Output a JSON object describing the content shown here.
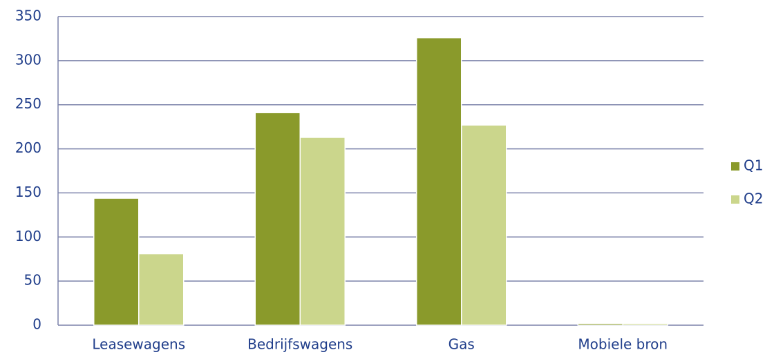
{
  "chart_data": {
    "type": "bar",
    "categories": [
      "Leasewagens",
      "Bedrijfswagens",
      "Gas",
      "Mobiele bron"
    ],
    "series": [
      {
        "name": "Q1",
        "color": "#8a9a2b",
        "values": [
          144,
          241,
          326,
          2
        ]
      },
      {
        "name": "Q2",
        "color": "#cbd68c",
        "values": [
          81,
          213,
          227,
          2
        ]
      }
    ],
    "ylim": [
      0,
      350
    ],
    "yticks": [
      0,
      50,
      100,
      150,
      200,
      250,
      300,
      350
    ],
    "grid": true,
    "legend": "right"
  }
}
